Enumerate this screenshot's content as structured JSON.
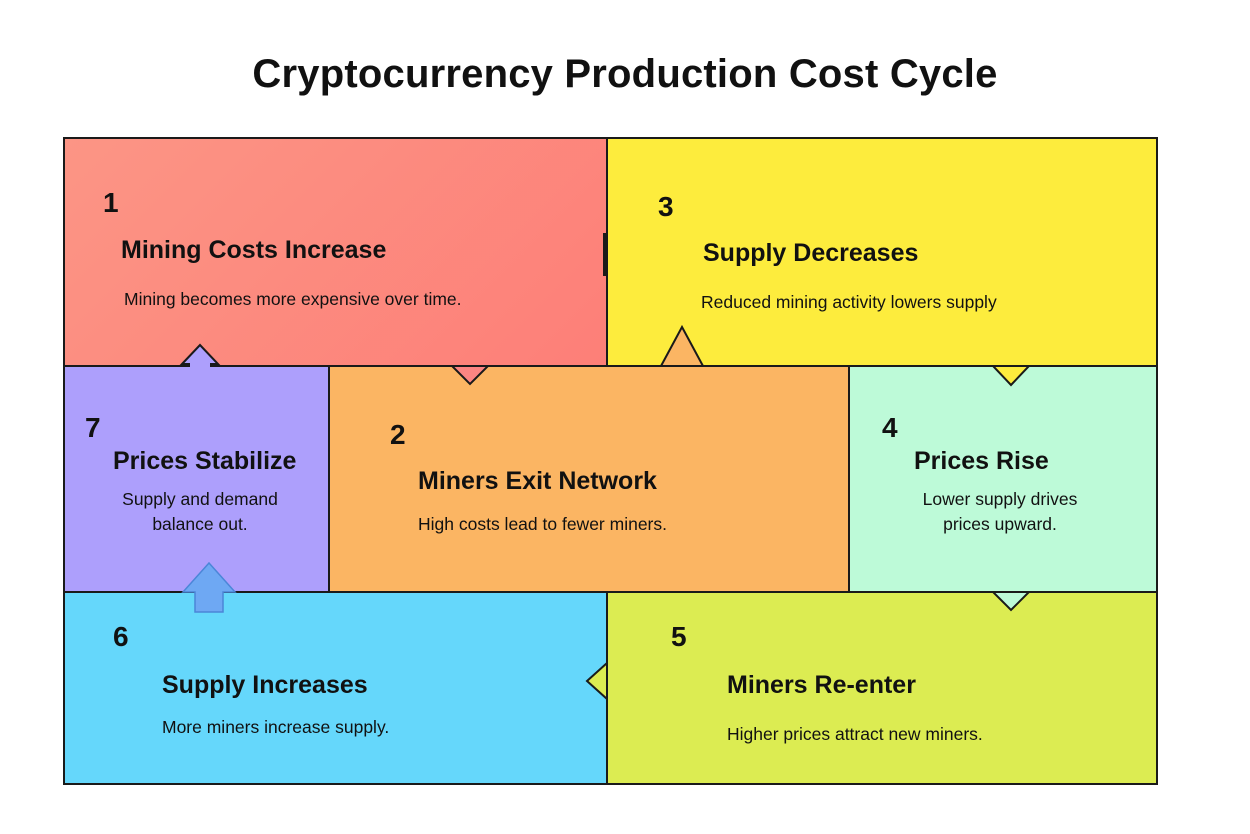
{
  "title": "Cryptocurrency Production Cost Cycle",
  "steps": [
    {
      "number": "1",
      "heading": "Mining Costs Increase",
      "description": "Mining becomes more expensive over time.",
      "color": "#fc8d82"
    },
    {
      "number": "2",
      "heading": "Miners Exit Network",
      "description": "High costs lead to fewer miners.",
      "color": "#fbb563"
    },
    {
      "number": "3",
      "heading": "Supply Decreases",
      "description": "Reduced mining activity lowers supply",
      "color": "#fdec3d"
    },
    {
      "number": "4",
      "heading": "Prices Rise",
      "description": "Lower supply drives prices upward.",
      "color": "#bdfad8"
    },
    {
      "number": "5",
      "heading": "Miners Re-enter",
      "description": "Higher prices attract new miners.",
      "color": "#dcec52"
    },
    {
      "number": "6",
      "heading": "Supply Increases",
      "description": "More miners increase supply.",
      "color": "#65d7fb"
    },
    {
      "number": "7",
      "heading": "Prices Stabilize",
      "description": "Supply and demand balance out.",
      "color": "#ad9ffc"
    }
  ]
}
